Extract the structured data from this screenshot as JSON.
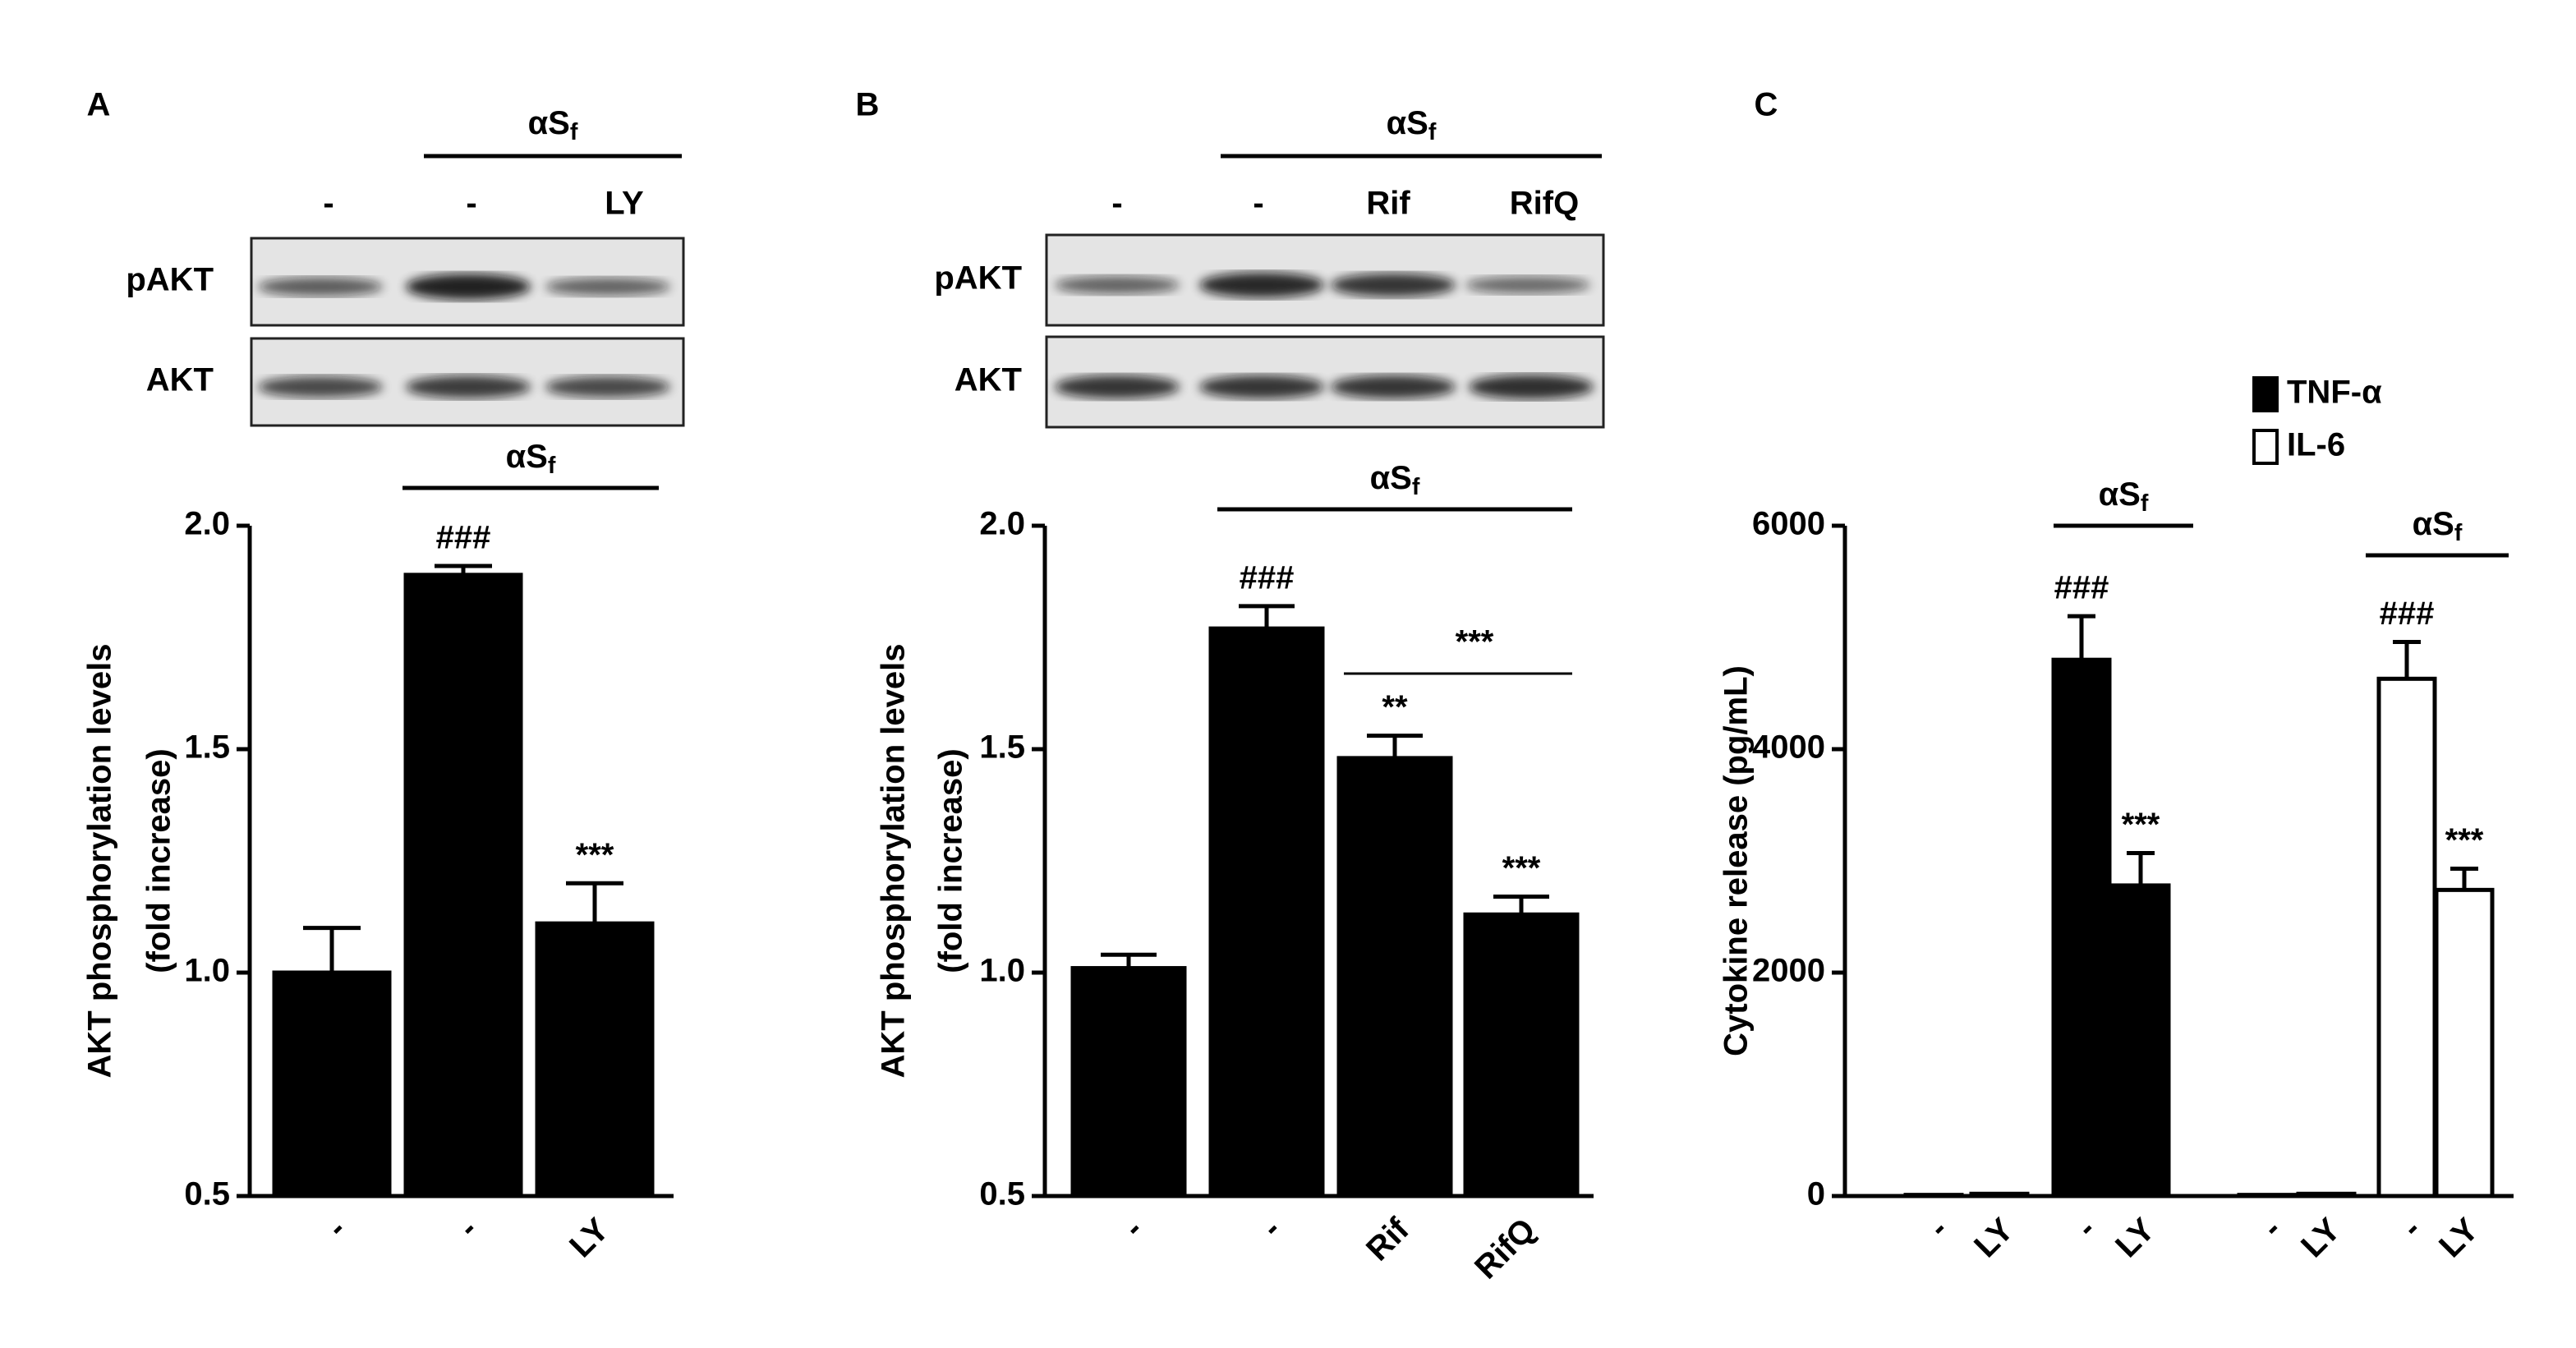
{
  "chart_data": [
    {
      "type": "bar",
      "panel": "A",
      "blot": {
        "treatment": {
          "main": "αS",
          "sub": "f"
        },
        "lanes": [
          "-",
          "-",
          "LY"
        ],
        "rows": [
          "pAKT",
          "AKT"
        ]
      },
      "y_label": [
        "AKT phosphorylation levels",
        "(fold increase)"
      ],
      "categories": [
        "-",
        "-",
        "LY"
      ],
      "values": [
        1,
        1.89,
        1.11
      ],
      "errors": [
        0.1,
        0.02,
        0.09
      ],
      "significance": [
        null,
        "###",
        "***"
      ],
      "treatment": {
        "main": "αS",
        "sub": "f"
      },
      "color": "#000000",
      "ylim": [
        0.5,
        2.0
      ],
      "yticks": [
        0.5,
        {
          "value": 1,
          "label": "1.0"
        },
        1.5,
        {
          "value": 2,
          "label": "2.0"
        }
      ]
    },
    {
      "type": "bar",
      "panel": "B",
      "blot": {
        "treatment": {
          "main": "αS",
          "sub": "f"
        },
        "lanes": [
          "-",
          "-",
          "Rif",
          "RifQ"
        ],
        "rows": [
          "pAKT",
          "AKT"
        ]
      },
      "y_label": [
        "AKT phosphorylation levels",
        "(fold increase)"
      ],
      "categories": [
        "-",
        "-",
        "Rif",
        "RifQ"
      ],
      "values": [
        1.01,
        1.77,
        1.48,
        1.13
      ],
      "errors": [
        0.03,
        0.05,
        0.05,
        0.04
      ],
      "significance": [
        null,
        "###",
        "**",
        "***"
      ],
      "group_significance": "***",
      "treatment": {
        "main": "αS",
        "sub": "f"
      },
      "color": "#000000",
      "ylim": [
        0.5,
        2.0
      ],
      "yticks": [
        0.5,
        {
          "value": 1,
          "label": "1.0"
        },
        1.5,
        {
          "value": 2,
          "label": "2.0"
        }
      ]
    },
    {
      "type": "bar",
      "panel": "C",
      "y_label": [
        "Cytokine release (pg/mL)"
      ],
      "categories": [
        "-",
        "LY",
        "-",
        "LY",
        "-",
        "LY",
        "-",
        "LY"
      ],
      "series": [
        {
          "name": "TNF-α",
          "color": "#000000",
          "values": [
            10,
            20,
            4800,
            2780,
            null,
            null,
            null,
            null
          ],
          "errors": [
            null,
            null,
            390,
            290,
            null,
            null,
            null,
            null
          ],
          "significance": [
            null,
            null,
            "###",
            "***",
            null,
            null,
            null,
            null
          ]
        },
        {
          "name": "IL-6",
          "color": "#ffffff",
          "values": [
            null,
            null,
            null,
            null,
            10,
            20,
            4630,
            2740
          ],
          "errors": [
            null,
            null,
            null,
            null,
            null,
            null,
            330,
            190
          ],
          "significance": [
            null,
            null,
            null,
            null,
            null,
            null,
            "###",
            "***"
          ]
        }
      ],
      "treatment": {
        "main": "αS",
        "sub": "f"
      },
      "ylim": [
        0,
        6000
      ],
      "yticks": [
        0,
        2000,
        4000,
        6000
      ],
      "legend": "upper right"
    }
  ]
}
